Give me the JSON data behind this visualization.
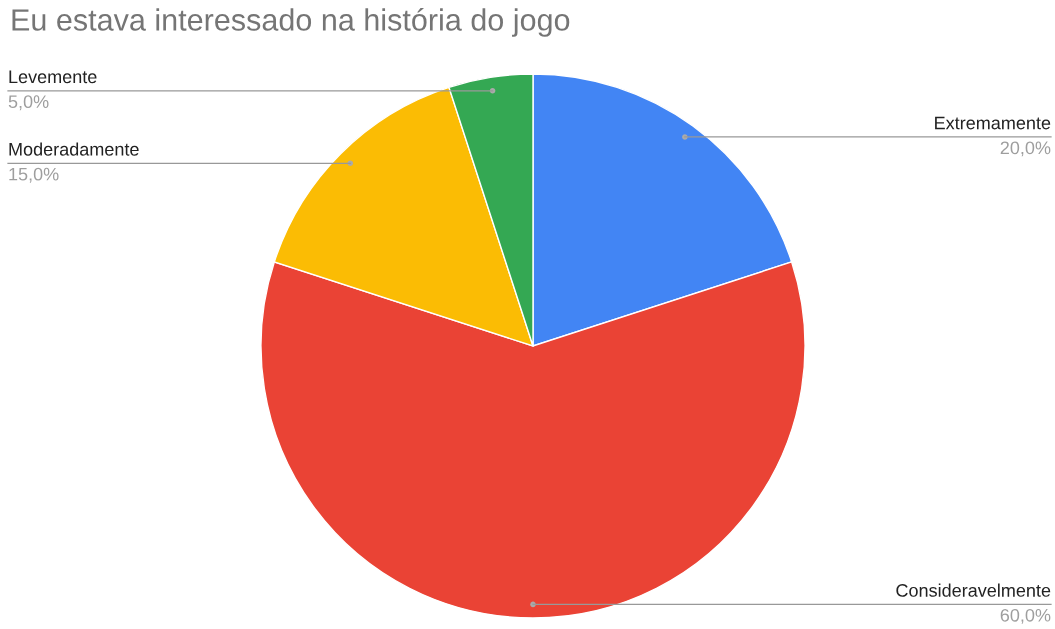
{
  "chart_data": {
    "type": "pie",
    "title": "Eu estava interessado na história do jogo",
    "categories": [
      "Extremamente",
      "Consideravelmente",
      "Moderadamente",
      "Levemente"
    ],
    "values": [
      20,
      60,
      15,
      5
    ],
    "colors": [
      "#4285f4",
      "#ea4335",
      "#fbbc04",
      "#34a853"
    ],
    "value_labels": [
      "20,0%",
      "60,0%",
      "15,0%",
      "5,0%"
    ]
  }
}
